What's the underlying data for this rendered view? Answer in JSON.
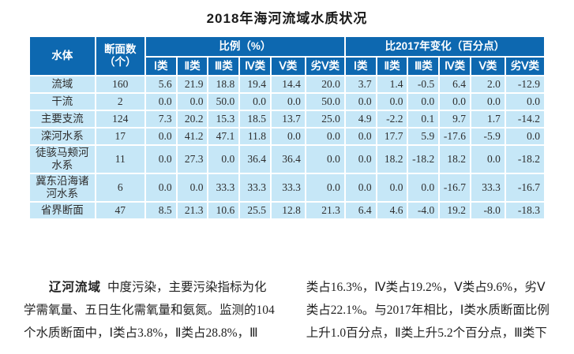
{
  "title": "2018年海河流域水质状况",
  "colors": {
    "header_blue": "#0d68b0",
    "row_blue": "#c6e7f7"
  },
  "table": {
    "header": {
      "water_body": "水体",
      "section_count": "断面数\n（个）",
      "proportion_group": "比例（%）",
      "change_group": "比2017年变化（百分点）",
      "classes": [
        "Ⅰ类",
        "Ⅱ类",
        "Ⅲ类",
        "Ⅳ类",
        "Ⅴ类",
        "劣Ⅴ类"
      ]
    },
    "rows": [
      {
        "name": "流域",
        "count": "160",
        "proportion": [
          "5.6",
          "21.9",
          "18.8",
          "19.4",
          "14.4",
          "20.0"
        ],
        "change": [
          "3.7",
          "1.4",
          "-0.5",
          "6.4",
          "2.0",
          "-12.9"
        ]
      },
      {
        "name": "干流",
        "count": "2",
        "proportion": [
          "0.0",
          "0.0",
          "50.0",
          "0.0",
          "0.0",
          "50.0"
        ],
        "change": [
          "0.0",
          "0.0",
          "0.0",
          "0.0",
          "0.0",
          "0.0"
        ]
      },
      {
        "name": "主要支流",
        "count": "124",
        "proportion": [
          "7.3",
          "20.2",
          "15.3",
          "18.5",
          "13.7",
          "25.0"
        ],
        "change": [
          "4.9",
          "-2.2",
          "0.1",
          "9.7",
          "1.7",
          "-14.2"
        ]
      },
      {
        "name": "滦河水系",
        "count": "17",
        "proportion": [
          "0.0",
          "41.2",
          "47.1",
          "11.8",
          "0.0",
          "0.0"
        ],
        "change": [
          "0.0",
          "17.7",
          "5.9",
          "-17.6",
          "-5.9",
          "0.0"
        ]
      },
      {
        "name": "徒骇马颊河\n水系",
        "count": "11",
        "proportion": [
          "0.0",
          "27.3",
          "0.0",
          "36.4",
          "36.4",
          "0.0"
        ],
        "change": [
          "0.0",
          "18.2",
          "-18.2",
          "18.2",
          "0.0",
          "-18.2"
        ]
      },
      {
        "name": "冀东沿海诸\n河水系",
        "count": "6",
        "proportion": [
          "0.0",
          "0.0",
          "33.3",
          "33.3",
          "33.3",
          "0.0"
        ],
        "change": [
          "0.0",
          "0.0",
          "0.0",
          "-16.7",
          "33.3",
          "-16.7"
        ]
      },
      {
        "name": "省界断面",
        "count": "47",
        "proportion": [
          "8.5",
          "21.3",
          "10.6",
          "25.5",
          "12.8",
          "21.3"
        ],
        "change": [
          "6.4",
          "4.6",
          "-4.0",
          "19.2",
          "-8.0",
          "-18.3"
        ]
      }
    ]
  },
  "bottom_text": {
    "lead": "辽河流域",
    "left_lines": [
      "中度污染，主要污染指标为化",
      "学需氧量、五日生化需氧量和氨氮。监测的104",
      "个水质断面中，Ⅰ类占3.8%，Ⅱ类占28.8%，Ⅲ"
    ],
    "right_lines": [
      "类占16.3%，Ⅳ类占19.2%，Ⅴ类占9.6%，劣Ⅴ",
      "类占22.1%。与2017年相比，Ⅰ类水质断面比例",
      "上升1.0百分点，Ⅱ类上升5.2个百分点，Ⅲ类下"
    ]
  }
}
